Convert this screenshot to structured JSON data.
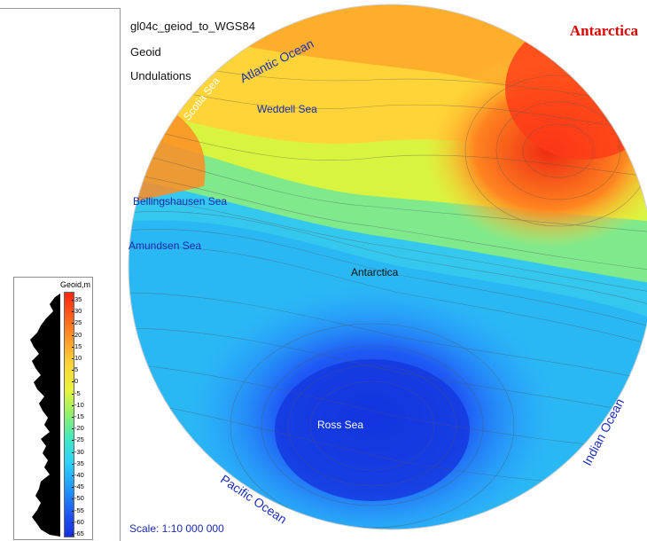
{
  "header": {
    "dataset": "gl04c_geiod_to_WGS84",
    "line2": "Geoid",
    "line3": "Undulations",
    "region_title": "Antarctica"
  },
  "map_labels": {
    "atlantic_ocean": "Atlantic Ocean",
    "scotia_sea": "Scotia Sea",
    "weddell_sea": "Weddell Sea",
    "bellingshausen_sea": "Bellingshausen Sea",
    "amundsen_sea": "Amundsen Sea",
    "antarctica": "Antarctica",
    "ross_sea": "Ross Sea",
    "indian_ocean": "Indian Ocean",
    "pacific_ocean": "Pacific Ocean"
  },
  "scale": "Scale: 1:10 000 000",
  "legend": {
    "title": "Geoid,m",
    "ticks": [
      "35",
      "30",
      "25",
      "20",
      "15",
      "10",
      "5",
      "0",
      "-5",
      "-10",
      "-15",
      "-20",
      "-25",
      "-30",
      "-35",
      "-40",
      "-45",
      "-50",
      "-55",
      "-60",
      "-65"
    ]
  },
  "colors": {
    "high": "#ff2410",
    "mid_high": "#ffce34",
    "mid": "#8ef06b",
    "mid_low": "#2bd0ff",
    "low": "#1530e0",
    "label_blue": "#1a2ab0",
    "title_red": "#e00000"
  }
}
